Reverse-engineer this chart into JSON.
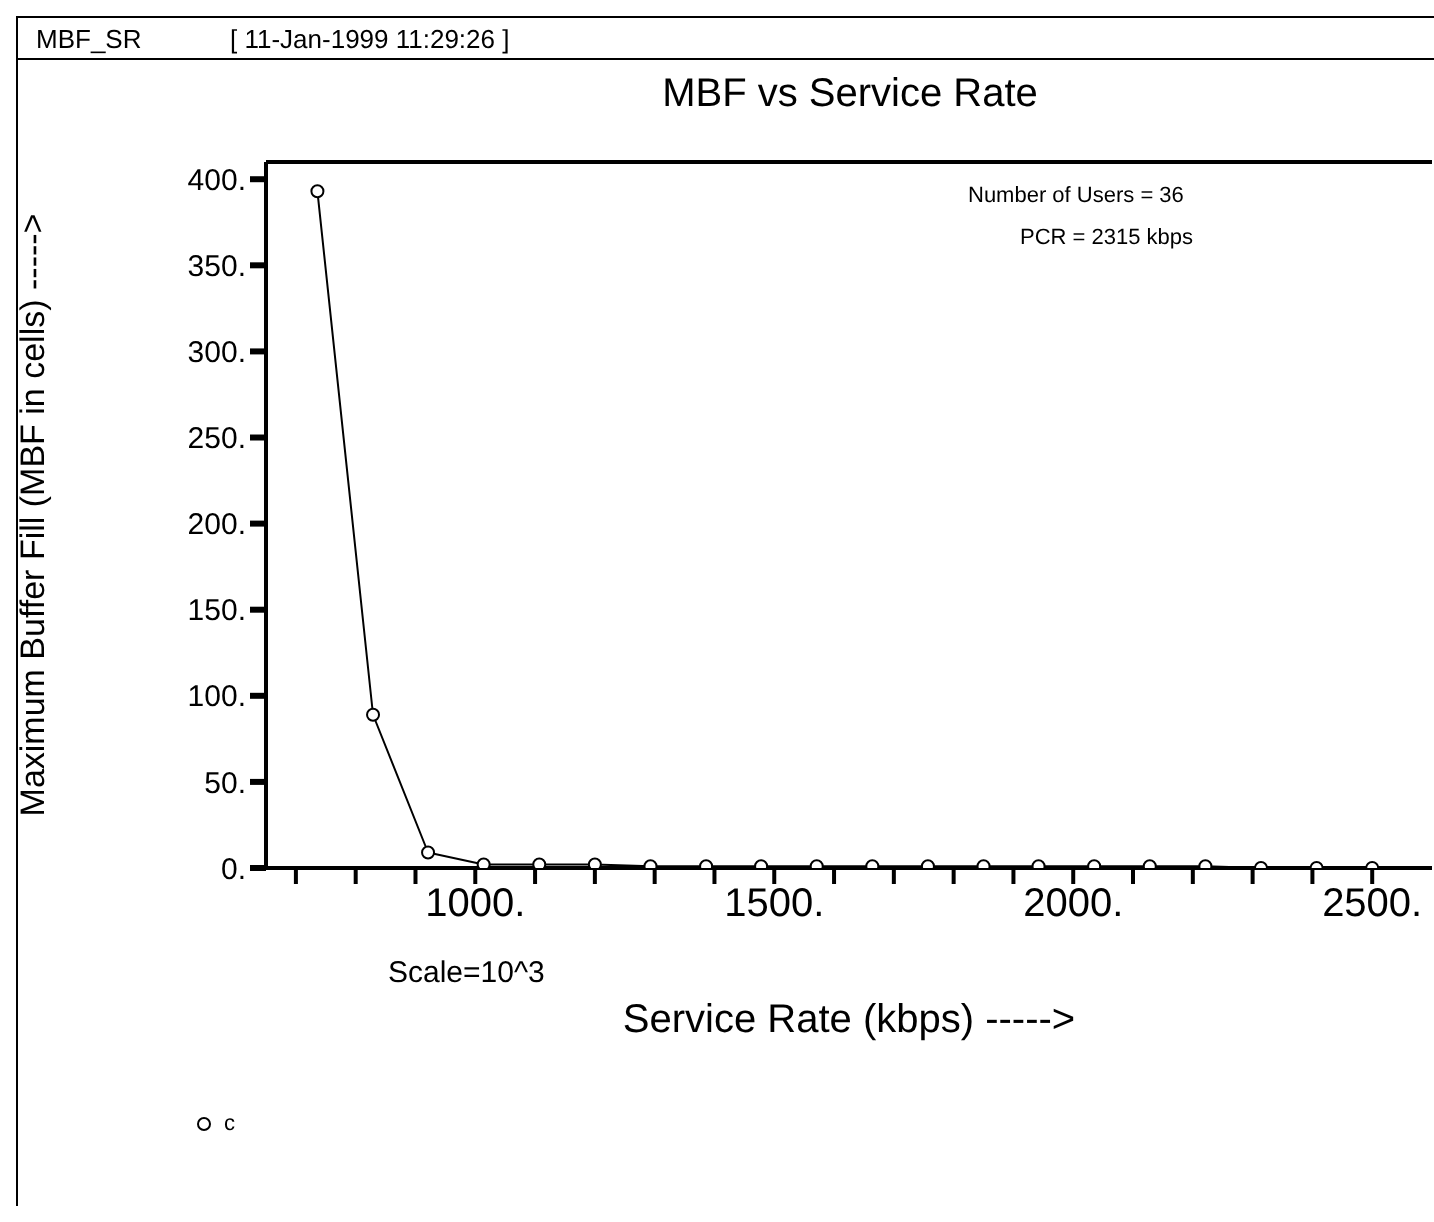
{
  "chart_data": {
    "type": "line",
    "title": "MBF vs Service Rate",
    "xlabel": "Service Rate (kbps) ----->",
    "ylabel": "Maximum Buffer Fill (MBF in cells) ----->",
    "annotations": [
      "MBF_SR",
      "[ 11-Jan-1999 11:29:26 ]",
      "Number of Users = 36",
      "PCR =  2315 kbps",
      "Scale=10^3"
    ],
    "x": [
      736,
      829,
      921,
      1014,
      1107,
      1200,
      1293,
      1386,
      1478,
      1571,
      1664,
      1757,
      1850,
      1942,
      2035,
      2128,
      2221,
      2314,
      2407,
      2500
    ],
    "series": [
      {
        "name": "c",
        "color": "#000000",
        "values": [
          393,
          89,
          9,
          2,
          2,
          2,
          1,
          1,
          1,
          1,
          1,
          1,
          1,
          1,
          1,
          1,
          1,
          0,
          0,
          0
        ]
      }
    ],
    "xlim": [
      650,
      2600
    ],
    "xticks": [
      {
        "value": 700,
        "label": null
      },
      {
        "value": 800,
        "label": null
      },
      {
        "value": 900,
        "label": null
      },
      {
        "value": 1000,
        "label": "1000."
      },
      {
        "value": 1100,
        "label": null
      },
      {
        "value": 1200,
        "label": null
      },
      {
        "value": 1300,
        "label": null
      },
      {
        "value": 1400,
        "label": null
      },
      {
        "value": 1500,
        "label": "1500."
      },
      {
        "value": 1600,
        "label": null
      },
      {
        "value": 1700,
        "label": null
      },
      {
        "value": 1800,
        "label": null
      },
      {
        "value": 1900,
        "label": null
      },
      {
        "value": 2000,
        "label": "2000."
      },
      {
        "value": 2100,
        "label": null
      },
      {
        "value": 2200,
        "label": null
      },
      {
        "value": 2300,
        "label": null
      },
      {
        "value": 2400,
        "label": null
      },
      {
        "value": 2500,
        "label": "2500."
      }
    ],
    "ylim": [
      0,
      410
    ],
    "yticks": [
      {
        "value": 0,
        "label": "0."
      },
      {
        "value": 50,
        "label": "50."
      },
      {
        "value": 100,
        "label": "100."
      },
      {
        "value": 150,
        "label": "150."
      },
      {
        "value": 200,
        "label": "200."
      },
      {
        "value": 250,
        "label": "250."
      },
      {
        "value": 300,
        "label": "300."
      },
      {
        "value": 350,
        "label": "350."
      },
      {
        "value": 400,
        "label": "400."
      }
    ],
    "grid": false,
    "legend": "bottom left",
    "marker": "circle",
    "line_style": "solid"
  }
}
